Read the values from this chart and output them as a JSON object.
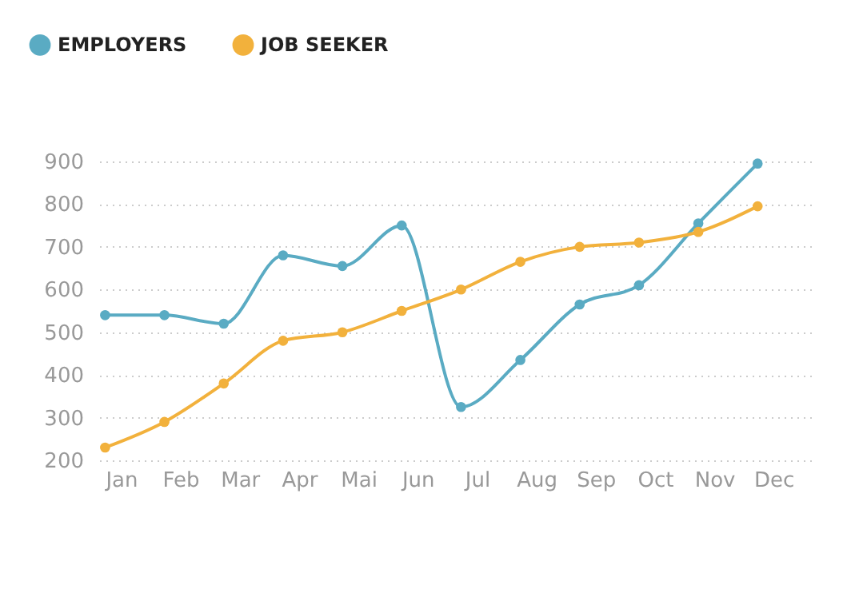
{
  "chart_data": {
    "type": "line",
    "categories": [
      "Jan",
      "Feb",
      "Mar",
      "Apr",
      "Mai",
      "Jun",
      "Jul",
      "Aug",
      "Sep",
      "Oct",
      "Nov",
      "Dec"
    ],
    "series": [
      {
        "name": "EMPLOYERS",
        "color": "#5aabc3",
        "values": [
          540,
          540,
          520,
          680,
          655,
          750,
          325,
          435,
          565,
          610,
          755,
          895
        ]
      },
      {
        "name": "JOB SEEKER",
        "color": "#f2b13c",
        "values": [
          230,
          290,
          380,
          480,
          500,
          550,
          600,
          665,
          700,
          710,
          735,
          795
        ]
      }
    ],
    "ylim": [
      200,
      900
    ],
    "yticks": [
      200,
      300,
      400,
      500,
      600,
      700,
      800,
      900
    ],
    "grid": "y",
    "legend": "top left",
    "marker": "circle",
    "line_style": "solid"
  }
}
